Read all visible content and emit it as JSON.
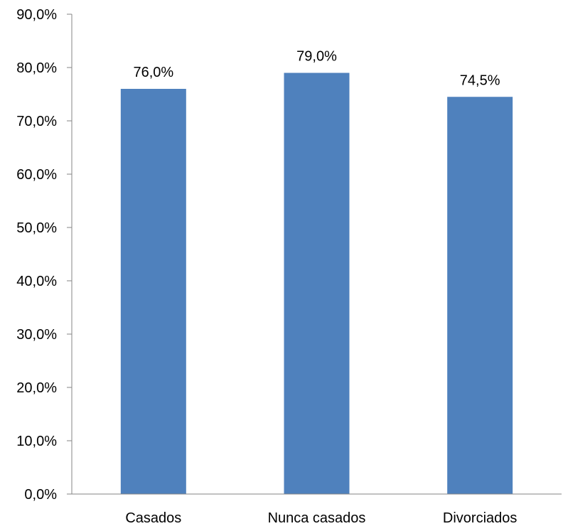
{
  "chart_data": {
    "type": "bar",
    "title": "",
    "xlabel": "",
    "ylabel": "",
    "categories": [
      "Casados",
      "Nunca casados",
      "Divorciados"
    ],
    "values": [
      76.0,
      79.0,
      74.5
    ],
    "data_labels": [
      "76,0%",
      "79,0%",
      "74,5%"
    ],
    "ylim": [
      0,
      90
    ],
    "yticks": [
      0,
      10,
      20,
      30,
      40,
      50,
      60,
      70,
      80,
      90
    ],
    "ytick_labels": [
      "0,0%",
      "10,0%",
      "20,0%",
      "30,0%",
      "40,0%",
      "50,0%",
      "60,0%",
      "70,0%",
      "80,0%",
      "90,0%"
    ],
    "grid": false,
    "legend": "none",
    "bar_color": "#4F81BD",
    "axis_color": "#868686"
  }
}
